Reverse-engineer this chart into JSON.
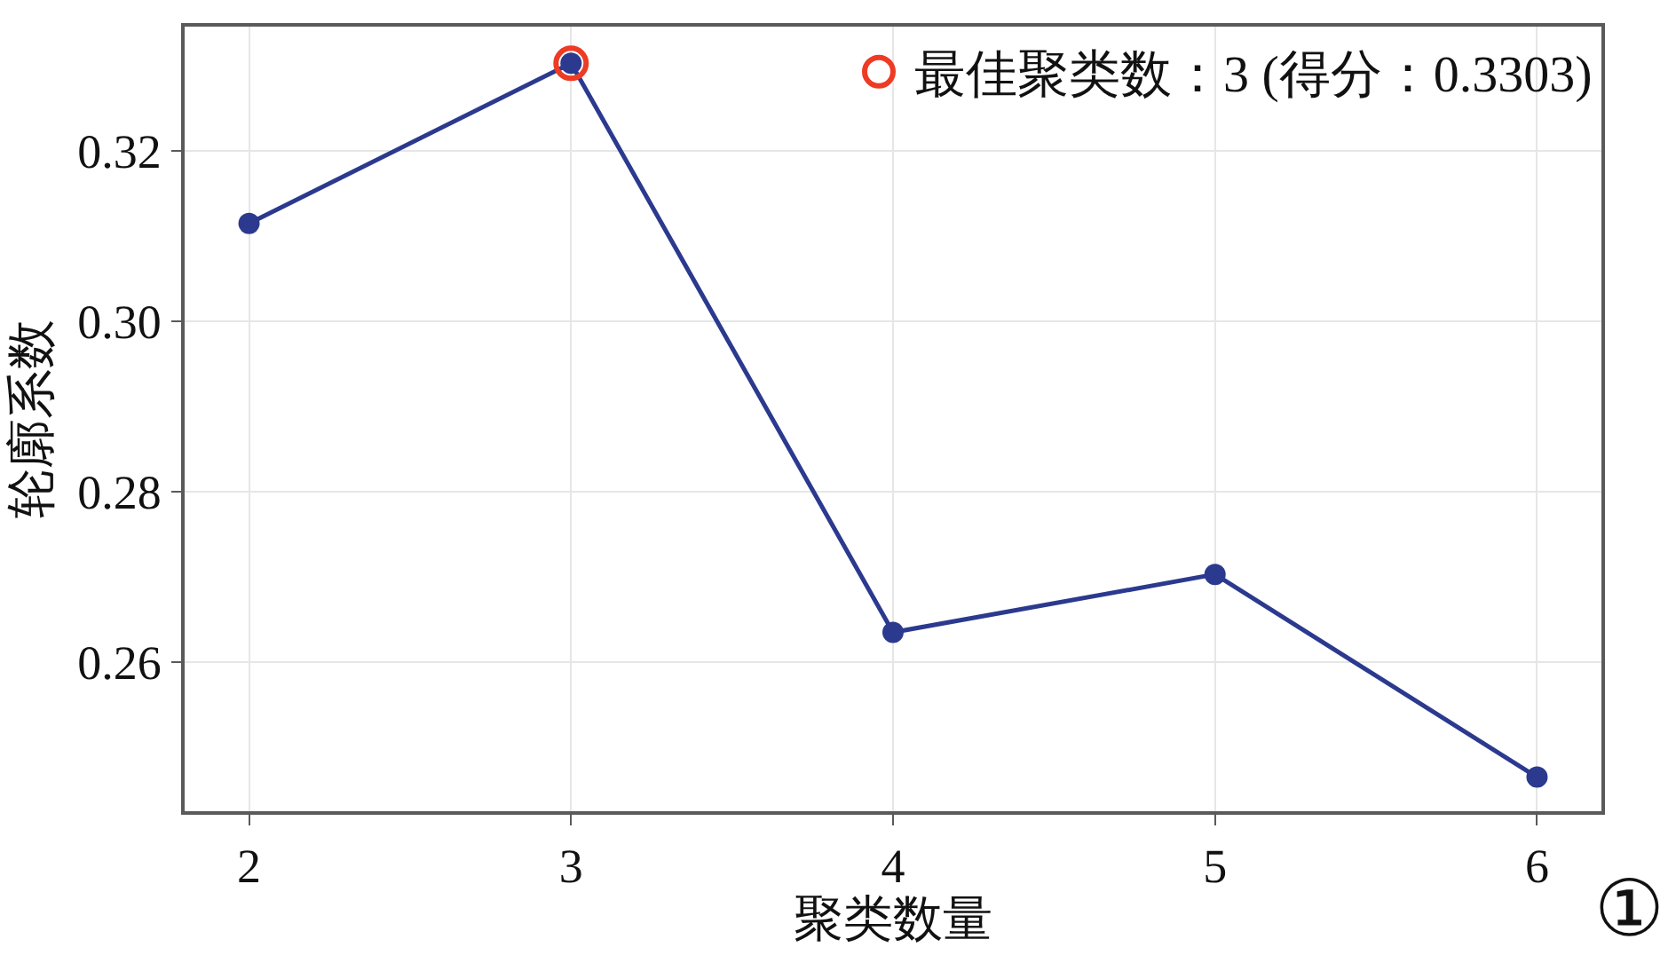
{
  "chart_data": {
    "type": "line",
    "xlabel": "聚类数量",
    "ylabel": "轮廓系数",
    "x": [
      2,
      3,
      4,
      5,
      6
    ],
    "xlim": [
      1.8,
      6.2
    ],
    "xticks": [
      2,
      3,
      4,
      5,
      6
    ],
    "ylim": [
      0.2425,
      0.3346
    ],
    "yticks": [
      0.26,
      0.28,
      {
        "value": 0.3,
        "label": "0.30"
      },
      0.32
    ],
    "grid": true,
    "legend": "top right",
    "marker": "circle",
    "series": [
      {
        "color": "#2b3a8e",
        "values": [
          0.3115,
          0.3303,
          0.2635,
          0.2703,
          0.2465
        ]
      },
      {
        "type": "scatter",
        "name": "最佳聚类数：3 (得分：0.3303)",
        "color": "#ee3b24",
        "x": [
          3
        ],
        "values": [
          0.3303
        ]
      }
    ],
    "annotations": [
      "①"
    ]
  }
}
